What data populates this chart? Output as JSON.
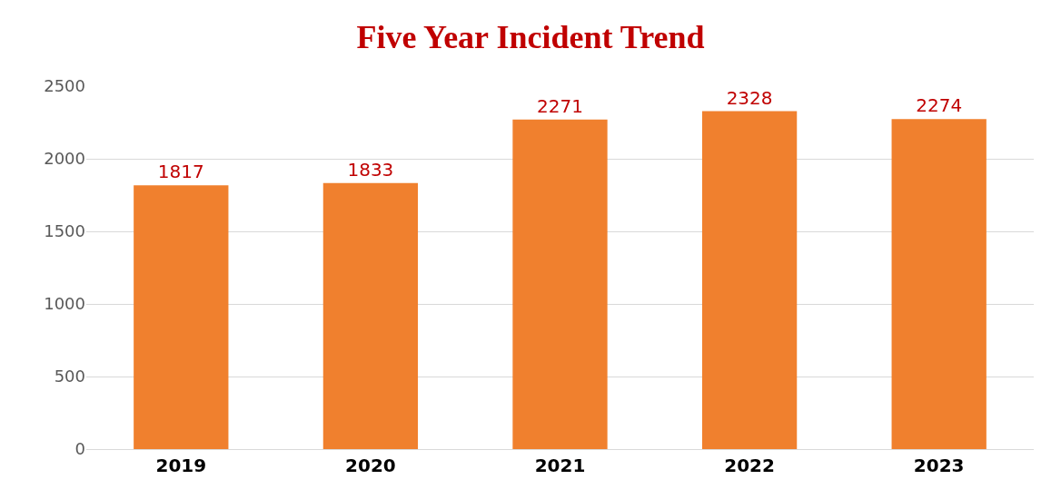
{
  "chart_data": {
    "type": "bar",
    "title": "Five Year Incident Trend",
    "categories": [
      "2019",
      "2020",
      "2021",
      "2022",
      "2023"
    ],
    "values": [
      1817,
      1833,
      2271,
      2328,
      2274
    ],
    "color": "#f0802e",
    "ylim": [
      0,
      2500
    ],
    "yticks": [
      0,
      500,
      1000,
      1500,
      2000,
      2500
    ],
    "grid": "y",
    "data_labels": true,
    "legend": false
  }
}
